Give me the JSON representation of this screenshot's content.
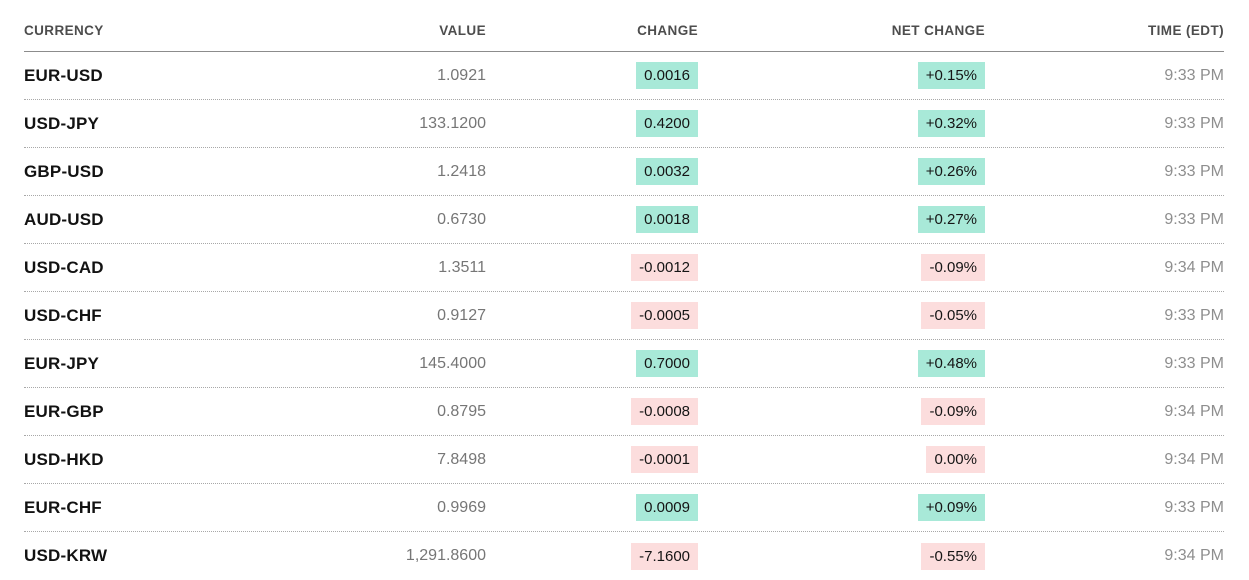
{
  "colors": {
    "positive_badge_bg": "#a8e9d8",
    "negative_badge_bg": "#fcdddd",
    "ticker_text": "#121212",
    "value_text": "#767676",
    "time_text": "#8e8e8e",
    "header_text": "#4d4d4d",
    "header_rule": "#8c8c8c",
    "row_separator": "#a8a8a8"
  },
  "table": {
    "columns": [
      {
        "label": "CURRENCY",
        "align": "left"
      },
      {
        "label": "VALUE",
        "align": "right"
      },
      {
        "label": "CHANGE",
        "align": "right"
      },
      {
        "label": "NET CHANGE",
        "align": "right"
      },
      {
        "label": "TIME (EDT)",
        "align": "right"
      }
    ],
    "rows": [
      {
        "currency": "EUR-USD",
        "value": "1.0921",
        "change": "0.0016",
        "net_change": "+0.15%",
        "time": "9:33 PM",
        "direction": "up"
      },
      {
        "currency": "USD-JPY",
        "value": "133.1200",
        "change": "0.4200",
        "net_change": "+0.32%",
        "time": "9:33 PM",
        "direction": "up"
      },
      {
        "currency": "GBP-USD",
        "value": "1.2418",
        "change": "0.0032",
        "net_change": "+0.26%",
        "time": "9:33 PM",
        "direction": "up"
      },
      {
        "currency": "AUD-USD",
        "value": "0.6730",
        "change": "0.0018",
        "net_change": "+0.27%",
        "time": "9:33 PM",
        "direction": "up"
      },
      {
        "currency": "USD-CAD",
        "value": "1.3511",
        "change": "-0.0012",
        "net_change": "-0.09%",
        "time": "9:34 PM",
        "direction": "down"
      },
      {
        "currency": "USD-CHF",
        "value": "0.9127",
        "change": "-0.0005",
        "net_change": "-0.05%",
        "time": "9:33 PM",
        "direction": "down"
      },
      {
        "currency": "EUR-JPY",
        "value": "145.4000",
        "change": "0.7000",
        "net_change": "+0.48%",
        "time": "9:33 PM",
        "direction": "up"
      },
      {
        "currency": "EUR-GBP",
        "value": "0.8795",
        "change": "-0.0008",
        "net_change": "-0.09%",
        "time": "9:34 PM",
        "direction": "down"
      },
      {
        "currency": "USD-HKD",
        "value": "7.8498",
        "change": "-0.0001",
        "net_change": "0.00%",
        "time": "9:34 PM",
        "direction": "down"
      },
      {
        "currency": "EUR-CHF",
        "value": "0.9969",
        "change": "0.0009",
        "net_change": "+0.09%",
        "time": "9:33 PM",
        "direction": "up"
      },
      {
        "currency": "USD-KRW",
        "value": "1,291.8600",
        "change": "-7.1600",
        "net_change": "-0.55%",
        "time": "9:34 PM",
        "direction": "down"
      }
    ]
  },
  "chart_data": {
    "type": "table",
    "columns": [
      "CURRENCY",
      "VALUE",
      "CHANGE",
      "NET CHANGE",
      "TIME (EDT)"
    ],
    "rows": [
      [
        "EUR-USD",
        1.0921,
        0.0016,
        "+0.15%",
        "9:33 PM"
      ],
      [
        "USD-JPY",
        133.12,
        0.42,
        "+0.32%",
        "9:33 PM"
      ],
      [
        "GBP-USD",
        1.2418,
        0.0032,
        "+0.26%",
        "9:33 PM"
      ],
      [
        "AUD-USD",
        0.673,
        0.0018,
        "+0.27%",
        "9:33 PM"
      ],
      [
        "USD-CAD",
        1.3511,
        -0.0012,
        "-0.09%",
        "9:34 PM"
      ],
      [
        "USD-CHF",
        0.9127,
        -0.0005,
        "-0.05%",
        "9:33 PM"
      ],
      [
        "EUR-JPY",
        145.4,
        0.7,
        "+0.48%",
        "9:33 PM"
      ],
      [
        "EUR-GBP",
        0.8795,
        -0.0008,
        "-0.09%",
        "9:34 PM"
      ],
      [
        "USD-HKD",
        7.8498,
        -0.0001,
        "0.00%",
        "9:34 PM"
      ],
      [
        "EUR-CHF",
        0.9969,
        0.0009,
        "+0.09%",
        "9:33 PM"
      ],
      [
        "USD-KRW",
        1291.86,
        -7.16,
        "-0.55%",
        "9:34 PM"
      ]
    ],
    "positive_rows_highlighted_green": true,
    "negative_rows_highlighted_pink": true
  }
}
